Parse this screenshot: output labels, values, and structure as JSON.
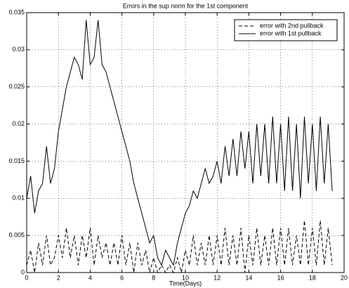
{
  "chart_data": {
    "type": "line",
    "title": "Errors in the sup norm for the 1st component",
    "xlabel": "Time(Days)",
    "x": [
      0,
      0.25,
      0.5,
      0.75,
      1,
      1.25,
      1.5,
      1.75,
      2,
      2.25,
      2.5,
      2.75,
      3,
      3.25,
      3.5,
      3.75,
      4,
      4.25,
      4.5,
      4.75,
      5,
      5.25,
      5.5,
      5.75,
      6,
      6.25,
      6.5,
      6.75,
      7,
      7.25,
      7.5,
      7.75,
      8,
      8.25,
      8.5,
      8.75,
      9,
      9.25,
      9.5,
      9.75,
      10,
      10.25,
      10.5,
      10.75,
      11,
      11.25,
      11.5,
      11.75,
      12,
      12.25,
      12.5,
      12.75,
      13,
      13.25,
      13.5,
      13.75,
      14,
      14.25,
      14.5,
      14.75,
      15,
      15.25,
      15.5,
      15.75,
      16,
      16.25,
      16.5,
      16.75,
      17,
      17.25,
      17.5,
      17.75,
      18,
      18.25,
      18.5,
      18.75,
      19,
      19.25
    ],
    "series": [
      {
        "name": "error with 2nd pullback",
        "color": "#000000",
        "dash": "dashed",
        "values": [
          0.001,
          0.003,
          0.0,
          0.004,
          0.001,
          0.005,
          0.001,
          0.002,
          0.005,
          0.002,
          0.006,
          0.002,
          0.005,
          0.001,
          0.005,
          0.002,
          0.006,
          0.001,
          0.005,
          0.002,
          0.004,
          0.001,
          0.004,
          0.001,
          0.005,
          0.001,
          0.004,
          0.0,
          0.004,
          0.001,
          0.003,
          0.0,
          0.002,
          0.0,
          0.001,
          0.0,
          0.001,
          0.0,
          0.002,
          0.0,
          0.003,
          0.001,
          0.005,
          0.001,
          0.004,
          0.001,
          0.005,
          0.001,
          0.005,
          0.001,
          0.006,
          0.001,
          0.005,
          0.001,
          0.006,
          0.0,
          0.005,
          0.001,
          0.006,
          0.001,
          0.005,
          0.001,
          0.006,
          0.001,
          0.006,
          0.001,
          0.006,
          0.001,
          0.005,
          0.001,
          0.007,
          0.001,
          0.006,
          0.001,
          0.007,
          0.001,
          0.006,
          0.001
        ]
      },
      {
        "name": "error with 1st pullback",
        "color": "#000000",
        "dash": "solid",
        "values": [
          0.01,
          0.013,
          0.008,
          0.011,
          0.012,
          0.017,
          0.012,
          0.014,
          0.019,
          0.022,
          0.025,
          0.027,
          0.029,
          0.028,
          0.026,
          0.034,
          0.028,
          0.029,
          0.034,
          0.028,
          0.027,
          0.025,
          0.023,
          0.021,
          0.019,
          0.017,
          0.015,
          0.012,
          0.01,
          0.008,
          0.006,
          0.004,
          0.005,
          0.002,
          0.001,
          0.003,
          0.002,
          0.001,
          0.004,
          0.006,
          0.008,
          0.009,
          0.011,
          0.01,
          0.012,
          0.014,
          0.012,
          0.013,
          0.015,
          0.012,
          0.017,
          0.013,
          0.018,
          0.013,
          0.019,
          0.014,
          0.019,
          0.012,
          0.02,
          0.013,
          0.02,
          0.012,
          0.021,
          0.012,
          0.02,
          0.011,
          0.021,
          0.011,
          0.02,
          0.01,
          0.021,
          0.012,
          0.02,
          0.011,
          0.021,
          0.012,
          0.02,
          0.011
        ]
      }
    ],
    "xlim": [
      0,
      20
    ],
    "xticks": [
      0,
      2,
      4,
      6,
      8,
      10,
      12,
      14,
      16,
      18,
      20
    ],
    "ylim": [
      0,
      0.035
    ],
    "yticks": [
      0,
      0.005,
      0.01,
      0.015,
      0.02,
      0.025,
      0.03,
      0.035
    ],
    "grid": true,
    "legend": "northeast"
  }
}
